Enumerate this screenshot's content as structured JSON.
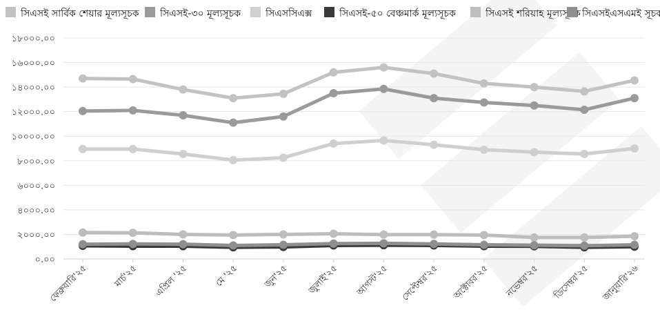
{
  "chart_data": {
    "type": "line",
    "categories": [
      "ফেব্রুয়ারি'২৫",
      "মার্চ'২৫",
      "এপ্রিল '২৫",
      "মে '২৫",
      "জুন'২৫",
      "জুলাই'২৫",
      "আগস্ট'২৫",
      "সেপ্টেম্বর'২৫",
      "অক্টোবর'২৫",
      "নভেম্বর'২৫",
      "ডিসেম্বর'২৫",
      "জানুয়ারি'২৬"
    ],
    "ylim": [
      0,
      18000
    ],
    "yticks": [
      0,
      2000,
      4000,
      6000,
      8000,
      10000,
      12000,
      14000,
      16000,
      18000
    ],
    "ytick_labels": [
      "০.০০",
      "২০০০.০০",
      "৪০০০.০০",
      "৬০০০.০০",
      "৮০০০.০০",
      "১০০০০.০০",
      "১২০০০.০০",
      "১৪০০০.০০",
      "১৬০০০.০০",
      "১৮০০০.০০"
    ],
    "grid": true,
    "legend_position": "top",
    "series": [
      {
        "name": "সিএসই সার্বিক শেয়ার মূল্যসূচক",
        "color": "#c2c2c2",
        "values": [
          14700,
          14650,
          13800,
          13100,
          13450,
          15200,
          15600,
          15100,
          14300,
          14000,
          13650,
          14550
        ]
      },
      {
        "name": "সিএসই-৩০ মূল্যসূচক",
        "color": "#9a9a9a",
        "values": [
          12050,
          12100,
          11700,
          11100,
          11600,
          13500,
          13850,
          13100,
          12750,
          12500,
          12150,
          13100
        ]
      },
      {
        "name": "সিএসসিএক্স",
        "color": "#cfcfcf",
        "values": [
          8950,
          8950,
          8550,
          8050,
          8250,
          9400,
          9650,
          9300,
          8900,
          8700,
          8550,
          9000
        ]
      },
      {
        "name": "সিএসই-৫০ বেঞ্চমার্ক মূল্যসূচক",
        "color": "#3a3a3a",
        "values": [
          1070,
          1040,
          1040,
          950,
          980,
          1100,
          1120,
          1100,
          1040,
          1030,
          950,
          1000
        ]
      },
      {
        "name": "সিএসই  শরিয়াহ মূল্যসূচক",
        "color": "#bdbdbd",
        "values": [
          2150,
          2130,
          2000,
          1950,
          2000,
          2050,
          1980,
          1980,
          1950,
          1750,
          1750,
          1850
        ]
      },
      {
        "name": "সিএসইএসএমই সূচক",
        "color": "#8f8f8f",
        "values": [
          1200,
          1220,
          1200,
          1100,
          1150,
          1250,
          1270,
          1220,
          1150,
          1120,
          1080,
          1150
        ]
      }
    ]
  }
}
